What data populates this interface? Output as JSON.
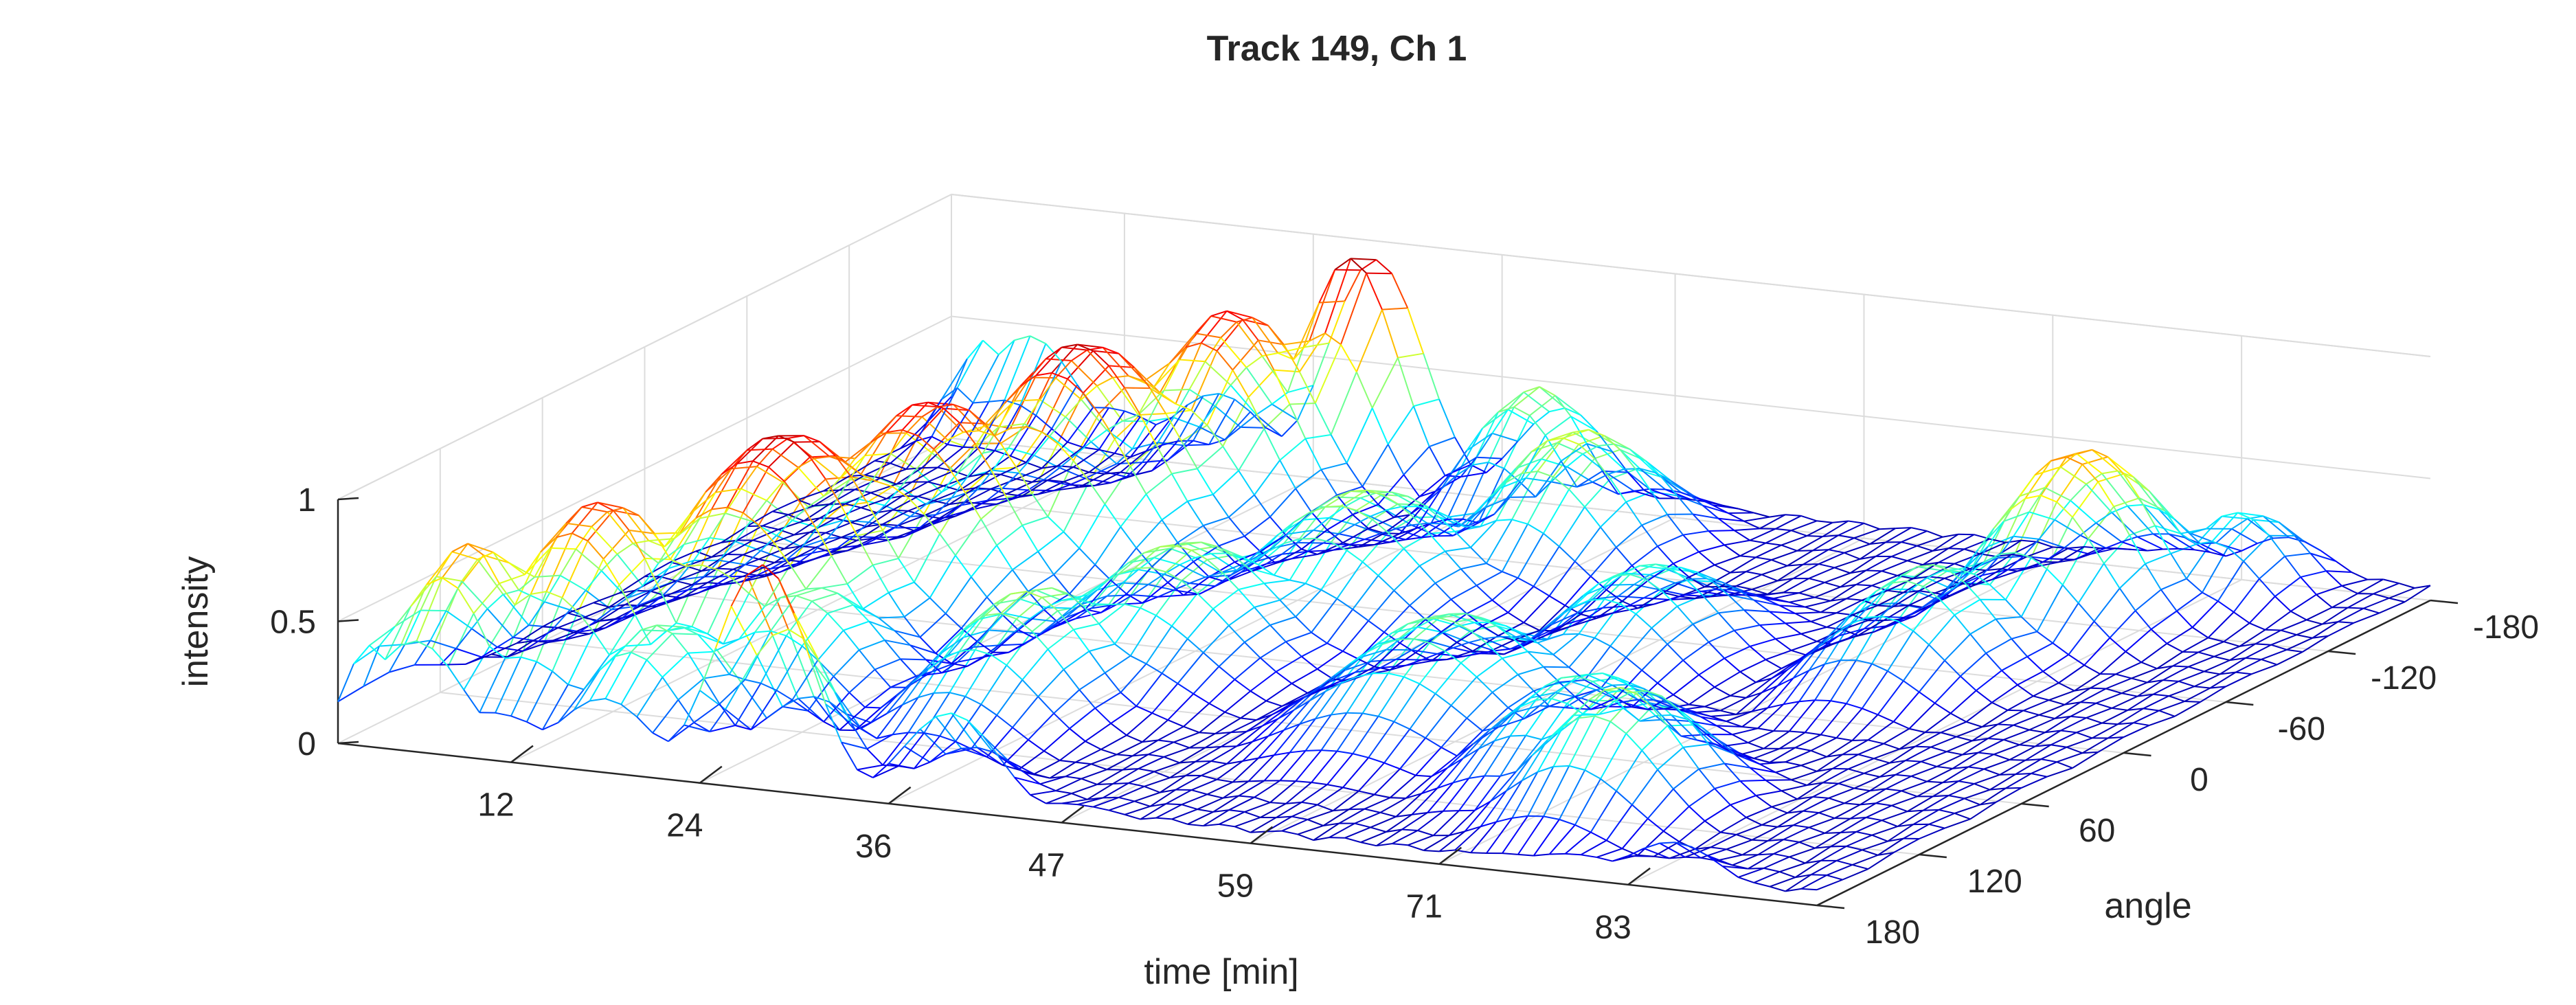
{
  "chart_data": {
    "type": "surface",
    "title": "Track 149, Ch 1",
    "xlabel": "time [min]",
    "ylabel": "angle",
    "zlabel": "intensity",
    "x_ticks": [
      12,
      24,
      36,
      47,
      59,
      71,
      83
    ],
    "y_ticks": [
      -180,
      -120,
      -60,
      0,
      60,
      120,
      180
    ],
    "z_ticks": [
      0,
      0.5,
      1
    ],
    "xlim": [
      1,
      95
    ],
    "ylim": [
      -180,
      180
    ],
    "zlim": [
      0,
      1
    ],
    "grid": true,
    "colormap": "jet",
    "render_style": "mesh",
    "n_angles": 24,
    "peaks": [
      {
        "time": 3,
        "angle": 170,
        "height": 0.45,
        "width_t": 1.5,
        "width_a": 25
      },
      {
        "time": 6,
        "angle": 150,
        "height": 0.75,
        "width_t": 3,
        "width_a": 30
      },
      {
        "time": 11,
        "angle": 120,
        "height": 0.85,
        "width_t": 4,
        "width_a": 35
      },
      {
        "time": 16,
        "angle": 60,
        "height": 0.95,
        "width_t": 5,
        "width_a": 45
      },
      {
        "time": 19,
        "angle": 0,
        "height": 0.9,
        "width_t": 5,
        "width_a": 40
      },
      {
        "time": 22,
        "angle": -60,
        "height": 0.95,
        "width_t": 5,
        "width_a": 40
      },
      {
        "time": 25,
        "angle": -120,
        "height": 0.9,
        "width_t": 4,
        "width_a": 35
      },
      {
        "time": 28,
        "angle": -170,
        "height": 1.0,
        "width_t": 3,
        "width_a": 25
      },
      {
        "time": 18,
        "angle": 150,
        "height": 0.5,
        "width_t": 3,
        "width_a": 30
      },
      {
        "time": 22,
        "angle": 100,
        "height": 0.5,
        "width_t": 4,
        "width_a": 30
      },
      {
        "time": 35,
        "angle": 90,
        "height": 0.55,
        "width_t": 4,
        "width_a": 40
      },
      {
        "time": 38,
        "angle": 30,
        "height": 0.55,
        "width_t": 5,
        "width_a": 40
      },
      {
        "time": 42,
        "angle": -40,
        "height": 0.55,
        "width_t": 5,
        "width_a": 40
      },
      {
        "time": 48,
        "angle": -110,
        "height": 0.6,
        "width_t": 4,
        "width_a": 35
      },
      {
        "time": 40,
        "angle": -160,
        "height": 0.55,
        "width_t": 3,
        "width_a": 25
      },
      {
        "time": 58,
        "angle": 60,
        "height": 0.5,
        "width_t": 5,
        "width_a": 40
      },
      {
        "time": 62,
        "angle": -20,
        "height": 0.45,
        "width_t": 4,
        "width_a": 40
      },
      {
        "time": 70,
        "angle": 90,
        "height": 0.45,
        "width_t": 4,
        "width_a": 35
      },
      {
        "time": 76,
        "angle": 120,
        "height": 0.55,
        "width_t": 4,
        "width_a": 30
      },
      {
        "time": 78,
        "angle": -40,
        "height": 0.5,
        "width_t": 4,
        "width_a": 35
      },
      {
        "time": 80,
        "angle": -110,
        "height": 0.75,
        "width_t": 4,
        "width_a": 35
      },
      {
        "time": 86,
        "angle": -150,
        "height": 0.4,
        "width_t": 3,
        "width_a": 25
      }
    ]
  }
}
